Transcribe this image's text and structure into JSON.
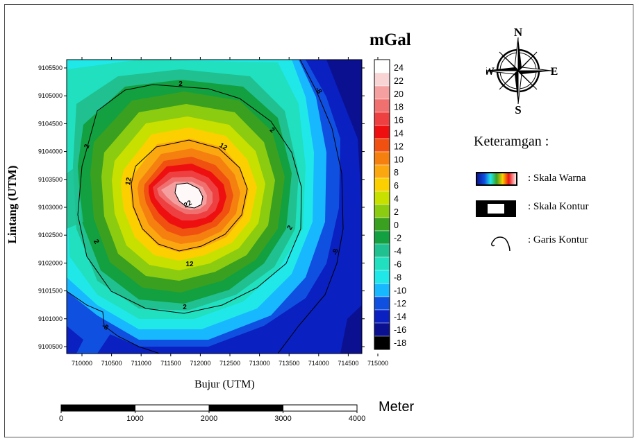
{
  "map": {
    "unit_label": "mGal",
    "y_axis_label": "Lintang (UTM)",
    "x_axis_label": "Bujur (UTM)",
    "x_ticks": [
      "710000",
      "710500",
      "711000",
      "711500",
      "712000",
      "712500",
      "713000",
      "713500",
      "714000",
      "714500",
      "715000"
    ],
    "y_ticks": [
      "9105500",
      "9105000",
      "9104500",
      "9104000",
      "9103500",
      "9103000",
      "9102500",
      "9102000",
      "9101500",
      "9101000",
      "9100500"
    ],
    "contour_labels": [
      "2",
      "2",
      "2",
      "2",
      "2",
      "2",
      "12",
      "12",
      "12",
      "22",
      "-8",
      "-8",
      "-8"
    ]
  },
  "colorbar": {
    "labels": [
      "24",
      "22",
      "20",
      "18",
      "16",
      "14",
      "12",
      "10",
      "8",
      "6",
      "4",
      "2",
      "0",
      "-2",
      "-4",
      "-6",
      "-8",
      "-10",
      "-12",
      "-14",
      "-16",
      "-18"
    ],
    "colors": [
      "#ffffff",
      "#f8d4d4",
      "#f5a0a0",
      "#f07070",
      "#ee4040",
      "#ee1010",
      "#f05010",
      "#f58010",
      "#fba810",
      "#fcd000",
      "#c8e000",
      "#8ccc10",
      "#3aa020",
      "#12a040",
      "#20c090",
      "#20e0c0",
      "#20e8e8",
      "#18b8ff",
      "#1050e0",
      "#0a20c0",
      "#0a1090",
      "#000000"
    ]
  },
  "compass": {
    "north": "N",
    "south": "S",
    "east": "E",
    "west": "W"
  },
  "legend": {
    "title": "Keteramgan :",
    "items": [
      {
        "label": ": Skala Warna"
      },
      {
        "label": ": Skala Kontur"
      },
      {
        "label": ": Garis Kontur"
      }
    ]
  },
  "scalebar": {
    "ticks": [
      "0",
      "1000",
      "2000",
      "3000",
      "4000"
    ],
    "unit": "Meter"
  },
  "colors": {
    "frame": "#555555",
    "contour": "#000000",
    "isoline": "#bbbbbb"
  }
}
